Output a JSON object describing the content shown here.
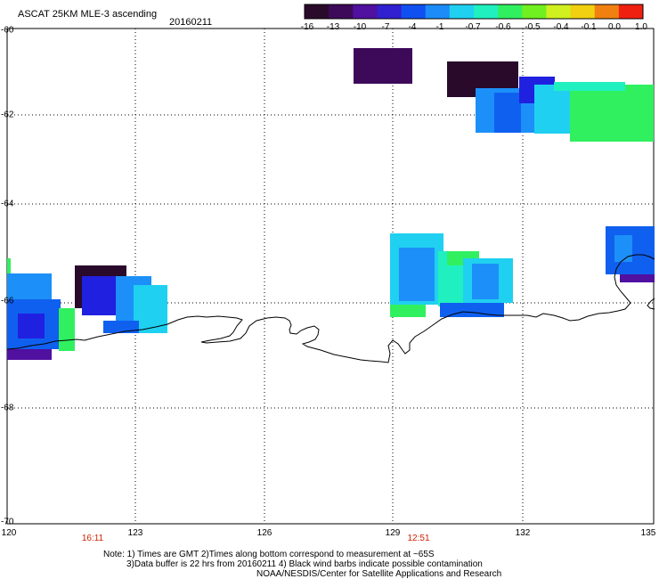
{
  "header": {
    "title": "ASCAT 25KM MLE-3 ascending",
    "date": "20160211"
  },
  "colorbar": {
    "labels": [
      "-16",
      "-13",
      "-10",
      "-7",
      "-4",
      "-1",
      "-0.7",
      "-0.6",
      "-0.5",
      "-0.4",
      "-0.1",
      "0.0",
      "1.0"
    ],
    "colors": [
      "#2a0a2a",
      "#3d0a5a",
      "#5010a0",
      "#3020d0",
      "#1050f0",
      "#1c8cf8",
      "#20d0f0",
      "#20f0c0",
      "#30f060",
      "#70f020",
      "#d0f020",
      "#f0d010",
      "#f08010",
      "#f02010"
    ]
  },
  "map": {
    "lat_labels": [
      "-60",
      "-62",
      "-64",
      "-66",
      "-68",
      "-70"
    ],
    "lon_labels": [
      "120",
      "123",
      "126",
      "129",
      "132",
      "135"
    ],
    "pass_times": [
      "16:11",
      "12:51"
    ]
  },
  "notes": [
    "Note: 1) Times are GMT 2)Times along bottom correspond to measurement at ~65S",
    "3)Data buffer is 22 hrs from 20160211 4) Black wind barbs indicate possible contamination",
    "NOAA/NESDIS/Center for Satellite Applications and Research"
  ]
}
